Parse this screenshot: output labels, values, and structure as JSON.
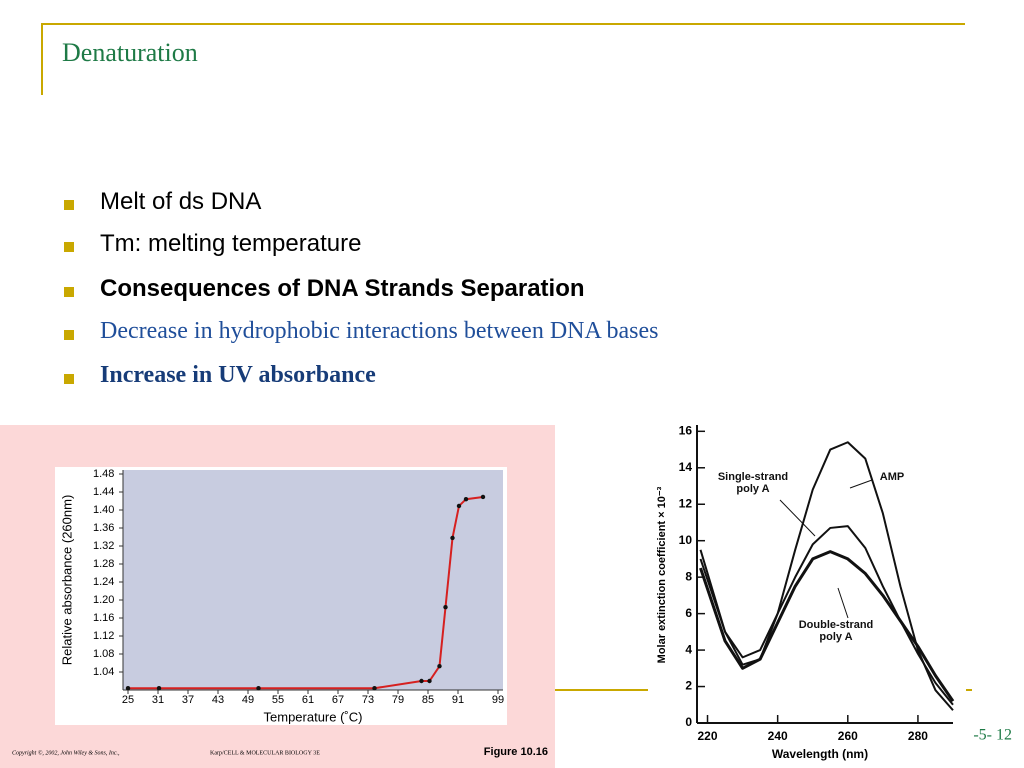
{
  "title": "Denaturation",
  "bullets": [
    "Melt of ds DNA",
    "Tm: melting temperature",
    "Consequences of DNA Strands Separation",
    "Decrease in hydrophobic interactions between DNA bases",
    "Increase in UV absorbance"
  ],
  "figure_left": {
    "y_label": "Relative absorbance (260nm)",
    "x_label": "Temperature (˚C)",
    "xlim": [
      24,
      100
    ],
    "ylim": [
      1.0,
      1.48
    ],
    "xticks": [
      25,
      31,
      37,
      43,
      49,
      55,
      61,
      67,
      73,
      79,
      85,
      91,
      99
    ],
    "yticks": [
      1.04,
      1.08,
      1.12,
      1.16,
      {
        "value": 1.2,
        "label": "1.20"
      },
      1.24,
      1.28,
      1.32,
      1.36,
      {
        "value": 1.4,
        "label": "1.40"
      },
      1.44,
      1.48
    ],
    "x": [
      25,
      31.2,
      51.1,
      74.3,
      83.7,
      85.3,
      87.3,
      88.5,
      89.9,
      91.2,
      92.6,
      96
    ],
    "values": [
      1.004,
      1.004,
      1.004,
      1.004,
      1.02,
      1.02,
      1.053,
      1.184,
      1.338,
      1.409,
      1.424,
      1.429
    ],
    "color": "#d62020",
    "caption": "Figure 10.16",
    "copyright": "Copyright ©, 2002, John Wiley & Sons, Inc.,",
    "credit": "Karp/CELL & MOLECULAR BIOLOGY 3E"
  },
  "figure_right": {
    "y_label": "Molar extinction coefficient × 10⁻³",
    "x_label": "Wavelength (nm)",
    "xlim": [
      217,
      290
    ],
    "ylim": [
      0,
      16.5
    ],
    "xticks": [
      220,
      240,
      260,
      280
    ],
    "yticks": [
      0,
      2,
      4,
      6,
      8,
      10,
      12,
      14,
      16
    ],
    "x": [
      218,
      225,
      230,
      235,
      240,
      245,
      250,
      255,
      260,
      265,
      270,
      275,
      280,
      285,
      290
    ],
    "series": [
      {
        "name": "AMP",
        "values": [
          9,
          5,
          3.2,
          3.5,
          6,
          9.5,
          12.8,
          15,
          15.4,
          14.5,
          11.5,
          7.5,
          4,
          1.8,
          0.7
        ]
      },
      {
        "name": "Single-strand poly A",
        "values": [
          9.5,
          5,
          3.6,
          4,
          6,
          8,
          9.8,
          10.7,
          10.8,
          9.6,
          7.5,
          5.6,
          3.8,
          2.2,
          1
        ]
      },
      {
        "name": "Double-strand poly A",
        "values": [
          8.5,
          4.5,
          3,
          3.5,
          5.5,
          7.5,
          9,
          9.4,
          9,
          8.2,
          7,
          5.6,
          4.2,
          2.6,
          1.2
        ]
      }
    ]
  },
  "page_number": "-5- 12"
}
